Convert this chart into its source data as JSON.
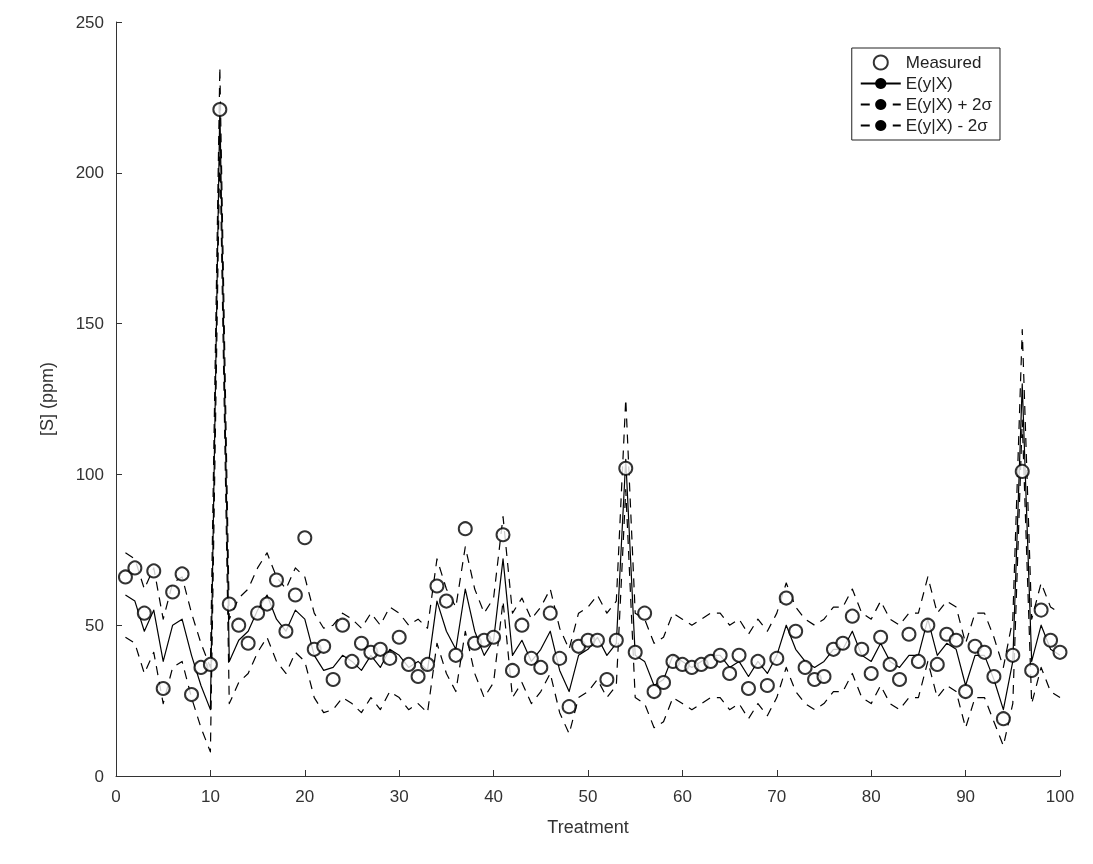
{
  "chart_data": {
    "type": "line",
    "xlabel": "Treatment",
    "ylabel": "[S] (ppm)",
    "x": [
      1,
      2,
      3,
      4,
      5,
      6,
      7,
      8,
      9,
      10,
      11,
      12,
      13,
      14,
      15,
      16,
      17,
      18,
      19,
      20,
      21,
      22,
      23,
      24,
      25,
      26,
      27,
      28,
      29,
      30,
      31,
      32,
      33,
      34,
      35,
      36,
      37,
      38,
      39,
      40,
      41,
      42,
      43,
      44,
      45,
      46,
      47,
      48,
      49,
      50,
      51,
      52,
      53,
      54,
      55,
      56,
      57,
      58,
      59,
      60,
      61,
      62,
      63,
      64,
      65,
      66,
      67,
      68,
      69,
      70,
      71,
      72,
      73,
      74,
      75,
      76,
      77,
      78,
      79,
      80,
      81,
      82,
      83,
      84,
      85,
      86,
      87,
      88,
      89,
      90,
      91,
      92,
      93,
      94,
      95,
      96,
      97,
      98,
      99,
      100
    ],
    "series": [
      {
        "name": "Measured",
        "type": "scatter",
        "marker": "circle",
        "color": "#000000",
        "values": [
          66,
          69,
          54,
          68,
          29,
          61,
          67,
          27,
          36,
          37,
          221,
          57,
          50,
          44,
          54,
          57,
          65,
          48,
          60,
          79,
          42,
          43,
          32,
          50,
          38,
          44,
          41,
          42,
          39,
          46,
          37,
          33,
          37,
          63,
          58,
          40,
          82,
          44,
          45,
          46,
          80,
          35,
          50,
          39,
          36,
          54,
          39,
          23,
          43,
          45,
          45,
          32,
          45,
          102,
          41,
          54,
          28,
          31,
          38,
          37,
          36,
          37,
          38,
          40,
          34,
          40,
          29,
          38,
          30,
          39,
          59,
          48,
          36,
          32,
          33,
          42,
          44,
          53,
          42,
          34,
          46,
          37,
          32,
          47,
          38,
          50,
          37,
          47,
          45,
          28,
          43,
          41,
          33,
          19,
          40,
          101,
          35,
          55,
          45,
          41
        ]
      },
      {
        "name": "E(y|X)",
        "type": "line",
        "line_style": "solid",
        "color": "#000000",
        "values": [
          60,
          58,
          48,
          55,
          38,
          50,
          52,
          40,
          30,
          22,
          222,
          38,
          45,
          48,
          55,
          60,
          52,
          48,
          55,
          52,
          40,
          35,
          36,
          40,
          38,
          35,
          40,
          36,
          42,
          40,
          36,
          38,
          35,
          58,
          48,
          42,
          62,
          48,
          40,
          45,
          72,
          40,
          45,
          38,
          42,
          48,
          35,
          28,
          40,
          42,
          46,
          40,
          44,
          105,
          40,
          38,
          30,
          32,
          40,
          38,
          36,
          38,
          40,
          40,
          36,
          38,
          33,
          38,
          34,
          40,
          50,
          42,
          38,
          36,
          38,
          42,
          42,
          48,
          40,
          38,
          44,
          38,
          36,
          40,
          40,
          52,
          40,
          44,
          42,
          30,
          40,
          40,
          32,
          22,
          38,
          130,
          38,
          50,
          42,
          40
        ]
      },
      {
        "name": "E(y|X) + 2σ",
        "type": "line",
        "line_style": "dashed",
        "color": "#000000",
        "values": [
          74,
          72,
          62,
          69,
          52,
          64,
          66,
          54,
          44,
          36,
          235,
          52,
          59,
          62,
          69,
          74,
          66,
          62,
          69,
          66,
          54,
          49,
          50,
          54,
          52,
          49,
          54,
          50,
          56,
          54,
          50,
          52,
          49,
          72,
          62,
          56,
          76,
          62,
          54,
          59,
          86,
          54,
          59,
          52,
          56,
          62,
          49,
          42,
          54,
          56,
          60,
          54,
          58,
          125,
          54,
          52,
          44,
          46,
          54,
          52,
          50,
          52,
          54,
          54,
          50,
          52,
          47,
          52,
          48,
          54,
          64,
          56,
          52,
          50,
          52,
          56,
          56,
          62,
          54,
          52,
          58,
          52,
          50,
          54,
          54,
          66,
          54,
          58,
          56,
          44,
          54,
          54,
          46,
          36,
          52,
          148,
          52,
          64,
          56,
          54
        ]
      },
      {
        "name": "E(y|X) - 2σ",
        "type": "line",
        "line_style": "dashed",
        "color": "#000000",
        "values": [
          46,
          44,
          34,
          41,
          24,
          36,
          38,
          26,
          16,
          8,
          209,
          24,
          31,
          34,
          41,
          46,
          38,
          34,
          41,
          38,
          26,
          21,
          22,
          26,
          24,
          21,
          26,
          22,
          28,
          26,
          22,
          24,
          21,
          44,
          34,
          28,
          48,
          34,
          26,
          31,
          58,
          26,
          31,
          24,
          28,
          34,
          21,
          14,
          26,
          28,
          32,
          26,
          30,
          95,
          26,
          24,
          16,
          18,
          26,
          24,
          22,
          24,
          26,
          26,
          22,
          24,
          19,
          24,
          20,
          26,
          36,
          28,
          24,
          22,
          24,
          28,
          28,
          34,
          26,
          24,
          30,
          24,
          22,
          26,
          26,
          38,
          26,
          30,
          28,
          16,
          26,
          26,
          18,
          10,
          24,
          118,
          24,
          36,
          28,
          26
        ]
      }
    ],
    "xlim": [
      0,
      100
    ],
    "xticks": [
      0,
      10,
      20,
      30,
      40,
      50,
      60,
      70,
      80,
      90,
      100
    ],
    "ylim": [
      0,
      250
    ],
    "yticks": [
      0,
      50,
      100,
      150,
      200,
      250
    ],
    "grid": false,
    "legend": "top right"
  }
}
